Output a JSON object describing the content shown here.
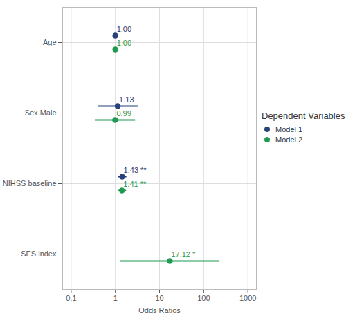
{
  "chart_data": {
    "type": "forest",
    "x_label": "Odds Ratios",
    "legend_title": "Dependent Variables",
    "categories": [
      "Age",
      "Sex Male",
      "NIHSS baseline",
      "SES index"
    ],
    "log": "x",
    "grid": true,
    "legend": "right",
    "data_labels": true,
    "xlim": [
      0.064,
      1560
    ],
    "xticks": [
      0.1,
      1,
      10,
      100,
      1000
    ],
    "series": [
      {
        "name": "Model 1",
        "color": "#27417a",
        "values": [
          1.0,
          1.13,
          1.43,
          null
        ],
        "value_labels": [
          "1.00",
          "1.13",
          "1.43 **",
          null
        ],
        "ci_low": [
          0.97,
          0.4,
          1.15,
          null
        ],
        "ci_high": [
          1.03,
          3.2,
          1.78,
          null
        ]
      },
      {
        "name": "Model 2",
        "color": "#1f9a52",
        "values": [
          1.0,
          0.99,
          1.41,
          17.12
        ],
        "value_labels": [
          "1.00",
          "0.99",
          "1.41 **",
          "17.12 *"
        ],
        "ci_low": [
          0.97,
          0.35,
          1.13,
          1.3
        ],
        "ci_high": [
          1.03,
          2.8,
          1.75,
          220
        ]
      }
    ]
  }
}
